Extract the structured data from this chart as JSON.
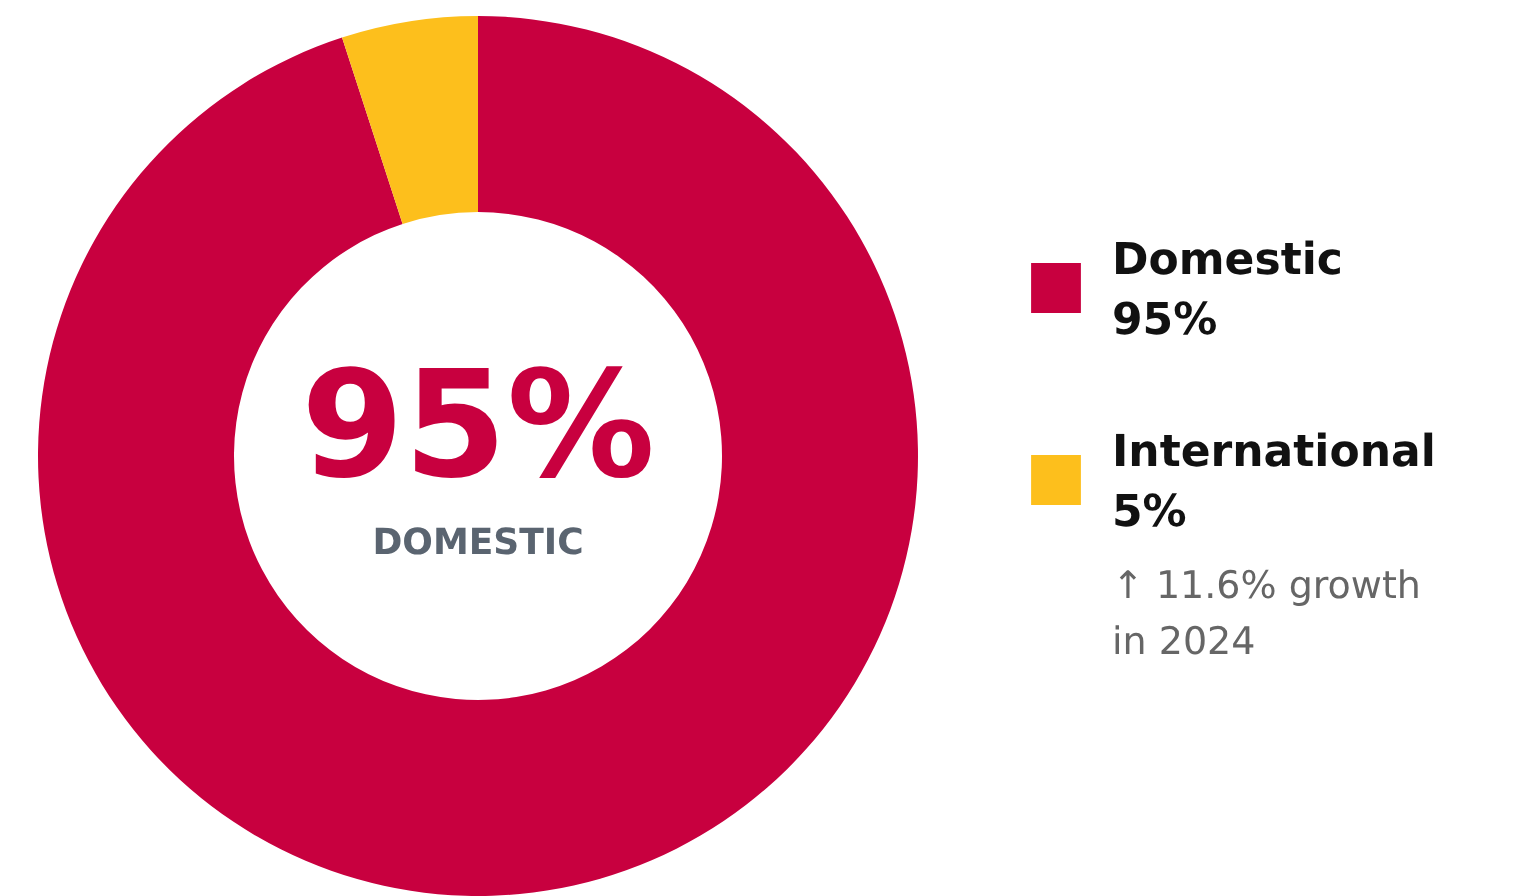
{
  "chart_data": {
    "type": "donut",
    "categories": [
      "Domestic",
      "International"
    ],
    "values": [
      95,
      5
    ],
    "colors": [
      "#c8003f",
      "#fdbf1c"
    ],
    "value_labels": [
      "95%",
      "5%"
    ],
    "legend": "right",
    "annotations": [
      "95%",
      "DOMESTIC",
      "↑ 11.6% growth\nin 2024"
    ]
  }
}
